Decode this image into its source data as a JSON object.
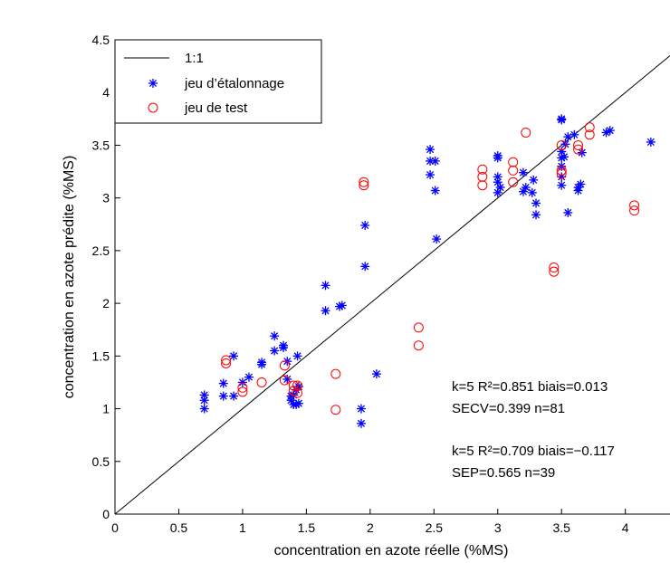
{
  "chart_data": {
    "type": "scatter",
    "xlabel": "concentration en azote réelle (%MS)",
    "ylabel": "concentration en azote prédite (%MS)",
    "xlim": [
      0,
      4.35
    ],
    "ylim": [
      0,
      4.5
    ],
    "xticks": [
      "0",
      "0.5",
      "1",
      "1.5",
      "2",
      "2.5",
      "3",
      "3.5",
      "4"
    ],
    "yticks": [
      "0",
      "0.5",
      "1",
      "1.5",
      "2",
      "2.5",
      "3",
      "3.5",
      "4",
      "4.5"
    ],
    "grid": false,
    "legend_position": "top-left",
    "colors": {
      "line": "#000000",
      "calibration": "#0000ff",
      "test": "#ff0000"
    },
    "reference_line": {
      "name": "1:1",
      "x": [
        0,
        4.35
      ],
      "y": [
        0,
        4.35
      ]
    },
    "series": [
      {
        "name": "jeu d’étalonnage",
        "marker": "asterisk",
        "points": [
          [
            0.7,
            1.0
          ],
          [
            0.7,
            1.08
          ],
          [
            0.7,
            1.13
          ],
          [
            0.85,
            1.12
          ],
          [
            0.85,
            1.24
          ],
          [
            0.93,
            1.12
          ],
          [
            0.93,
            1.5
          ],
          [
            1.0,
            1.25
          ],
          [
            1.05,
            1.3
          ],
          [
            1.15,
            1.42
          ],
          [
            1.15,
            1.44
          ],
          [
            1.25,
            1.55
          ],
          [
            1.25,
            1.69
          ],
          [
            1.32,
            1.58
          ],
          [
            1.32,
            1.6
          ],
          [
            1.35,
            1.45
          ],
          [
            1.35,
            1.28
          ],
          [
            1.38,
            1.12
          ],
          [
            1.38,
            1.08
          ],
          [
            1.4,
            1.04
          ],
          [
            1.4,
            1.13
          ],
          [
            1.42,
            1.18
          ],
          [
            1.42,
            1.04
          ],
          [
            1.44,
            1.05
          ],
          [
            1.44,
            1.21
          ],
          [
            1.43,
            1.5
          ],
          [
            1.65,
            1.93
          ],
          [
            1.65,
            2.17
          ],
          [
            1.76,
            1.97
          ],
          [
            1.78,
            1.98
          ],
          [
            1.93,
            1.0
          ],
          [
            1.93,
            0.86
          ],
          [
            1.96,
            2.35
          ],
          [
            1.96,
            2.74
          ],
          [
            2.05,
            1.33
          ],
          [
            2.47,
            3.22
          ],
          [
            2.47,
            3.35
          ],
          [
            2.47,
            3.46
          ],
          [
            2.51,
            3.35
          ],
          [
            2.51,
            3.07
          ],
          [
            2.52,
            2.61
          ],
          [
            3.0,
            3.05
          ],
          [
            3.0,
            3.15
          ],
          [
            3.0,
            3.2
          ],
          [
            3.0,
            3.38
          ],
          [
            3.0,
            3.4
          ],
          [
            3.02,
            3.1
          ],
          [
            3.2,
            3.06
          ],
          [
            3.2,
            3.24
          ],
          [
            3.22,
            3.1
          ],
          [
            3.27,
            3.05
          ],
          [
            3.28,
            3.17
          ],
          [
            3.3,
            2.95
          ],
          [
            3.3,
            2.84
          ],
          [
            3.5,
            3.12
          ],
          [
            3.5,
            3.2
          ],
          [
            3.5,
            3.3
          ],
          [
            3.5,
            3.38
          ],
          [
            3.5,
            3.44
          ],
          [
            3.5,
            3.74
          ],
          [
            3.5,
            3.75
          ],
          [
            3.52,
            3.39
          ],
          [
            3.53,
            3.51
          ],
          [
            3.55,
            3.58
          ],
          [
            3.55,
            2.86
          ],
          [
            3.6,
            3.6
          ],
          [
            3.63,
            3.1
          ],
          [
            3.63,
            3.07
          ],
          [
            3.65,
            3.13
          ],
          [
            3.66,
            3.43
          ],
          [
            3.85,
            3.62
          ],
          [
            3.88,
            3.64
          ],
          [
            4.2,
            3.53
          ]
        ]
      },
      {
        "name": "jeu de test",
        "marker": "circle",
        "points": [
          [
            0.87,
            1.43
          ],
          [
            0.87,
            1.46
          ],
          [
            1.0,
            1.2
          ],
          [
            1.0,
            1.16
          ],
          [
            1.15,
            1.25
          ],
          [
            1.33,
            1.27
          ],
          [
            1.33,
            1.41
          ],
          [
            1.4,
            1.22
          ],
          [
            1.4,
            1.17
          ],
          [
            1.43,
            1.15
          ],
          [
            1.43,
            1.22
          ],
          [
            1.73,
            1.33
          ],
          [
            1.73,
            0.99
          ],
          [
            1.95,
            3.12
          ],
          [
            1.95,
            3.15
          ],
          [
            2.38,
            1.6
          ],
          [
            2.38,
            1.77
          ],
          [
            2.88,
            3.12
          ],
          [
            2.88,
            3.2
          ],
          [
            2.88,
            3.27
          ],
          [
            3.12,
            3.15
          ],
          [
            3.12,
            3.26
          ],
          [
            3.12,
            3.34
          ],
          [
            3.22,
            3.62
          ],
          [
            3.44,
            2.3
          ],
          [
            3.44,
            2.34
          ],
          [
            3.5,
            3.23
          ],
          [
            3.5,
            3.26
          ],
          [
            3.5,
            3.5
          ],
          [
            3.63,
            3.46
          ],
          [
            3.63,
            3.5
          ],
          [
            3.72,
            3.6
          ],
          [
            3.72,
            3.67
          ],
          [
            4.07,
            2.88
          ],
          [
            4.07,
            2.93
          ]
        ]
      }
    ],
    "annotations": [
      {
        "text": "k=5 R²=0.851 biais=0.013",
        "line": 1,
        "group": 1
      },
      {
        "text": "SECV=0.399 n=81",
        "line": 2,
        "group": 1
      },
      {
        "text": "k=5 R²=0.709 biais=−0.117",
        "line": 1,
        "group": 2
      },
      {
        "text": "SEP=0.565 n=39",
        "line": 2,
        "group": 2
      }
    ]
  }
}
